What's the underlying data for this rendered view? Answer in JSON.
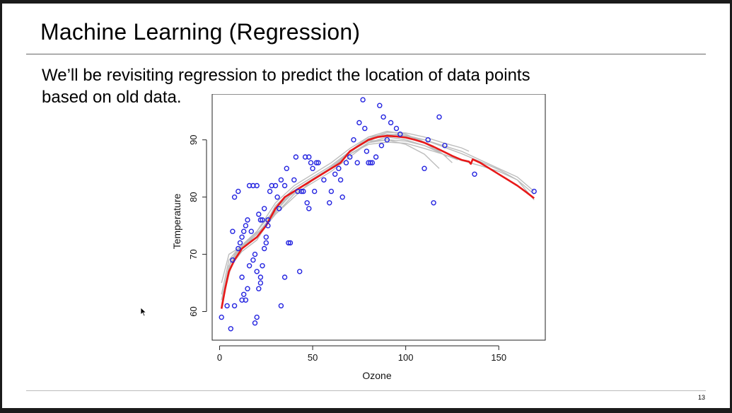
{
  "slide": {
    "title": "Machine Learning (Regression)",
    "body_lines": [
      "We’ll be revisiting regression to predict the location of data points",
      "based on old data."
    ],
    "page_number": "13"
  },
  "chart_data": {
    "type": "scatter",
    "title": "",
    "xlabel": "Ozone",
    "ylabel": "Temperature",
    "xlim": [
      -4,
      175
    ],
    "ylim": [
      55,
      98
    ],
    "xticks": [
      0,
      50,
      100,
      150
    ],
    "yticks": [
      60,
      70,
      80,
      90
    ],
    "points_color": "#2323e0",
    "fit_color": "#e81818",
    "bootstrap_color": "#bdbdbd",
    "points": [
      [
        1,
        59
      ],
      [
        4,
        61
      ],
      [
        6,
        57
      ],
      [
        8,
        61
      ],
      [
        7,
        69
      ],
      [
        10,
        71
      ],
      [
        11,
        72
      ],
      [
        12,
        73
      ],
      [
        13,
        74
      ],
      [
        14,
        75
      ],
      [
        15,
        76
      ],
      [
        17,
        74
      ],
      [
        12,
        66
      ],
      [
        14,
        62
      ],
      [
        15,
        64
      ],
      [
        16,
        68
      ],
      [
        18,
        69
      ],
      [
        19,
        70
      ],
      [
        20,
        67
      ],
      [
        22,
        65
      ],
      [
        23,
        68
      ],
      [
        24,
        71
      ],
      [
        25,
        73
      ],
      [
        26,
        75
      ],
      [
        7,
        74
      ],
      [
        8,
        80
      ],
      [
        10,
        81
      ],
      [
        12,
        62
      ],
      [
        13,
        63
      ],
      [
        16,
        82
      ],
      [
        18,
        82
      ],
      [
        20,
        82
      ],
      [
        21,
        77
      ],
      [
        22,
        76
      ],
      [
        23,
        76
      ],
      [
        24,
        78
      ],
      [
        19,
        58
      ],
      [
        20,
        59
      ],
      [
        21,
        64
      ],
      [
        22,
        66
      ],
      [
        25,
        72
      ],
      [
        26,
        76
      ],
      [
        27,
        81
      ],
      [
        28,
        82
      ],
      [
        30,
        82
      ],
      [
        31,
        80
      ],
      [
        32,
        78
      ],
      [
        33,
        83
      ],
      [
        35,
        82
      ],
      [
        36,
        85
      ],
      [
        37,
        72
      ],
      [
        38,
        72
      ],
      [
        33,
        61
      ],
      [
        35,
        66
      ],
      [
        40,
        83
      ],
      [
        41,
        87
      ],
      [
        42,
        81
      ],
      [
        43,
        67
      ],
      [
        44,
        81
      ],
      [
        45,
        81
      ],
      [
        46,
        87
      ],
      [
        47,
        79
      ],
      [
        48,
        78
      ],
      [
        48,
        87
      ],
      [
        49,
        86
      ],
      [
        50,
        85
      ],
      [
        51,
        81
      ],
      [
        52,
        86
      ],
      [
        53,
        86
      ],
      [
        56,
        83
      ],
      [
        59,
        79
      ],
      [
        60,
        81
      ],
      [
        62,
        84
      ],
      [
        64,
        85
      ],
      [
        65,
        83
      ],
      [
        66,
        80
      ],
      [
        68,
        86
      ],
      [
        70,
        87
      ],
      [
        72,
        90
      ],
      [
        74,
        86
      ],
      [
        75,
        93
      ],
      [
        77,
        97
      ],
      [
        78,
        92
      ],
      [
        79,
        88
      ],
      [
        80,
        86
      ],
      [
        81,
        86
      ],
      [
        82,
        86
      ],
      [
        84,
        87
      ],
      [
        86,
        96
      ],
      [
        87,
        89
      ],
      [
        88,
        94
      ],
      [
        90,
        90
      ],
      [
        92,
        93
      ],
      [
        95,
        92
      ],
      [
        97,
        91
      ],
      [
        110,
        85
      ],
      [
        112,
        90
      ],
      [
        115,
        79
      ],
      [
        118,
        94
      ],
      [
        121,
        89
      ],
      [
        137,
        84
      ],
      [
        169,
        81
      ]
    ],
    "fit_curve": [
      [
        1,
        60.5
      ],
      [
        3,
        64
      ],
      [
        5,
        67
      ],
      [
        8,
        69
      ],
      [
        12,
        71
      ],
      [
        16,
        72
      ],
      [
        20,
        73
      ],
      [
        25,
        75
      ],
      [
        30,
        78
      ],
      [
        35,
        80
      ],
      [
        40,
        81
      ],
      [
        45,
        82
      ],
      [
        50,
        83
      ],
      [
        55,
        84
      ],
      [
        60,
        85
      ],
      [
        65,
        86
      ],
      [
        70,
        88
      ],
      [
        75,
        89
      ],
      [
        80,
        90
      ],
      [
        85,
        90.5
      ],
      [
        90,
        90.7
      ],
      [
        95,
        90.6
      ],
      [
        100,
        90.4
      ],
      [
        105,
        90
      ],
      [
        110,
        89.5
      ],
      [
        115,
        88.8
      ],
      [
        120,
        88
      ],
      [
        125,
        87.2
      ],
      [
        130,
        86.5
      ],
      [
        134,
        86.2
      ],
      [
        135,
        85.8
      ],
      [
        136,
        86.6
      ],
      [
        140,
        86
      ],
      [
        145,
        85
      ],
      [
        150,
        84
      ],
      [
        155,
        83
      ],
      [
        160,
        82
      ],
      [
        165,
        80.8
      ],
      [
        169,
        79.8
      ]
    ],
    "bootstrap_curves": [
      [
        [
          1,
          61
        ],
        [
          5,
          68
        ],
        [
          10,
          70.5
        ],
        [
          20,
          73.5
        ],
        [
          30,
          77
        ],
        [
          40,
          80.5
        ],
        [
          50,
          82.5
        ],
        [
          60,
          84.5
        ],
        [
          70,
          87
        ],
        [
          80,
          89.5
        ],
        [
          90,
          90.5
        ],
        [
          100,
          90
        ],
        [
          110,
          89
        ],
        [
          120,
          87.5
        ],
        [
          128,
          86.5
        ]
      ],
      [
        [
          2,
          63
        ],
        [
          6,
          69
        ],
        [
          12,
          71.5
        ],
        [
          20,
          73
        ],
        [
          30,
          78
        ],
        [
          40,
          81.5
        ],
        [
          50,
          83.5
        ],
        [
          60,
          85.5
        ],
        [
          70,
          88
        ],
        [
          80,
          90.5
        ],
        [
          90,
          91.5
        ],
        [
          100,
          91
        ],
        [
          110,
          89.5
        ],
        [
          120,
          87.5
        ],
        [
          125,
          86
        ]
      ],
      [
        [
          1,
          65
        ],
        [
          5,
          70
        ],
        [
          10,
          71
        ],
        [
          20,
          74
        ],
        [
          30,
          79
        ],
        [
          40,
          82
        ],
        [
          50,
          84
        ],
        [
          60,
          86
        ],
        [
          70,
          88.5
        ],
        [
          80,
          90.5
        ],
        [
          90,
          91
        ],
        [
          100,
          90.8
        ],
        [
          110,
          90
        ],
        [
          120,
          88.8
        ],
        [
          130,
          87.6
        ],
        [
          140,
          86.2
        ],
        [
          150,
          84.8
        ],
        [
          160,
          83
        ],
        [
          169,
          80.5
        ]
      ],
      [
        [
          1,
          62
        ],
        [
          5,
          67.5
        ],
        [
          10,
          70
        ],
        [
          20,
          72.5
        ],
        [
          30,
          77.5
        ],
        [
          40,
          81
        ],
        [
          50,
          83
        ],
        [
          60,
          85
        ],
        [
          70,
          87.5
        ],
        [
          80,
          89.5
        ],
        [
          90,
          90
        ],
        [
          100,
          89.8
        ],
        [
          110,
          89
        ],
        [
          118,
          88
        ]
      ],
      [
        [
          3,
          64
        ],
        [
          8,
          70
        ],
        [
          15,
          72.5
        ],
        [
          25,
          75
        ],
        [
          35,
          79.5
        ],
        [
          45,
          82
        ],
        [
          55,
          84
        ],
        [
          65,
          86.5
        ],
        [
          75,
          89
        ],
        [
          85,
          90.5
        ],
        [
          95,
          91
        ],
        [
          105,
          90.4
        ],
        [
          115,
          88.8
        ],
        [
          122,
          87
        ]
      ],
      [
        [
          1,
          63
        ],
        [
          5,
          69
        ],
        [
          10,
          71
        ],
        [
          20,
          73
        ],
        [
          30,
          77
        ],
        [
          40,
          80
        ],
        [
          50,
          83
        ],
        [
          60,
          85
        ],
        [
          70,
          88
        ],
        [
          80,
          90
        ],
        [
          90,
          90.8
        ],
        [
          100,
          90.6
        ],
        [
          110,
          90
        ],
        [
          120,
          89
        ],
        [
          130,
          88
        ],
        [
          140,
          86.5
        ],
        [
          150,
          85
        ],
        [
          160,
          83.5
        ],
        [
          169,
          81
        ]
      ],
      [
        [
          2,
          62.5
        ],
        [
          6,
          68
        ],
        [
          12,
          70.5
        ],
        [
          20,
          72.5
        ],
        [
          30,
          78.5
        ],
        [
          40,
          81.5
        ],
        [
          50,
          83.5
        ],
        [
          60,
          85.5
        ],
        [
          70,
          88
        ],
        [
          80,
          89.8
        ],
        [
          90,
          90
        ],
        [
          100,
          89.2
        ],
        [
          110,
          87.5
        ],
        [
          118,
          85
        ]
      ],
      [
        [
          1,
          62
        ],
        [
          5,
          68
        ],
        [
          10,
          70.5
        ],
        [
          20,
          74
        ],
        [
          30,
          78
        ],
        [
          40,
          81
        ],
        [
          50,
          83
        ],
        [
          60,
          85
        ],
        [
          70,
          87.8
        ],
        [
          80,
          90.2
        ],
        [
          90,
          91.3
        ],
        [
          100,
          91.2
        ],
        [
          110,
          90.5
        ],
        [
          120,
          89.5
        ],
        [
          130,
          88.6
        ],
        [
          134,
          88
        ]
      ],
      [
        [
          4,
          66
        ],
        [
          10,
          71
        ],
        [
          20,
          73.5
        ],
        [
          30,
          77.5
        ],
        [
          40,
          81
        ],
        [
          50,
          83.2
        ],
        [
          60,
          85.2
        ],
        [
          70,
          87.5
        ],
        [
          80,
          89.2
        ],
        [
          90,
          89.6
        ],
        [
          100,
          89.4
        ],
        [
          110,
          88.5
        ],
        [
          120,
          87.5
        ],
        [
          130,
          86.4
        ],
        [
          140,
          85.5
        ],
        [
          150,
          84.5
        ],
        [
          160,
          83
        ],
        [
          169,
          79.5
        ]
      ]
    ]
  }
}
